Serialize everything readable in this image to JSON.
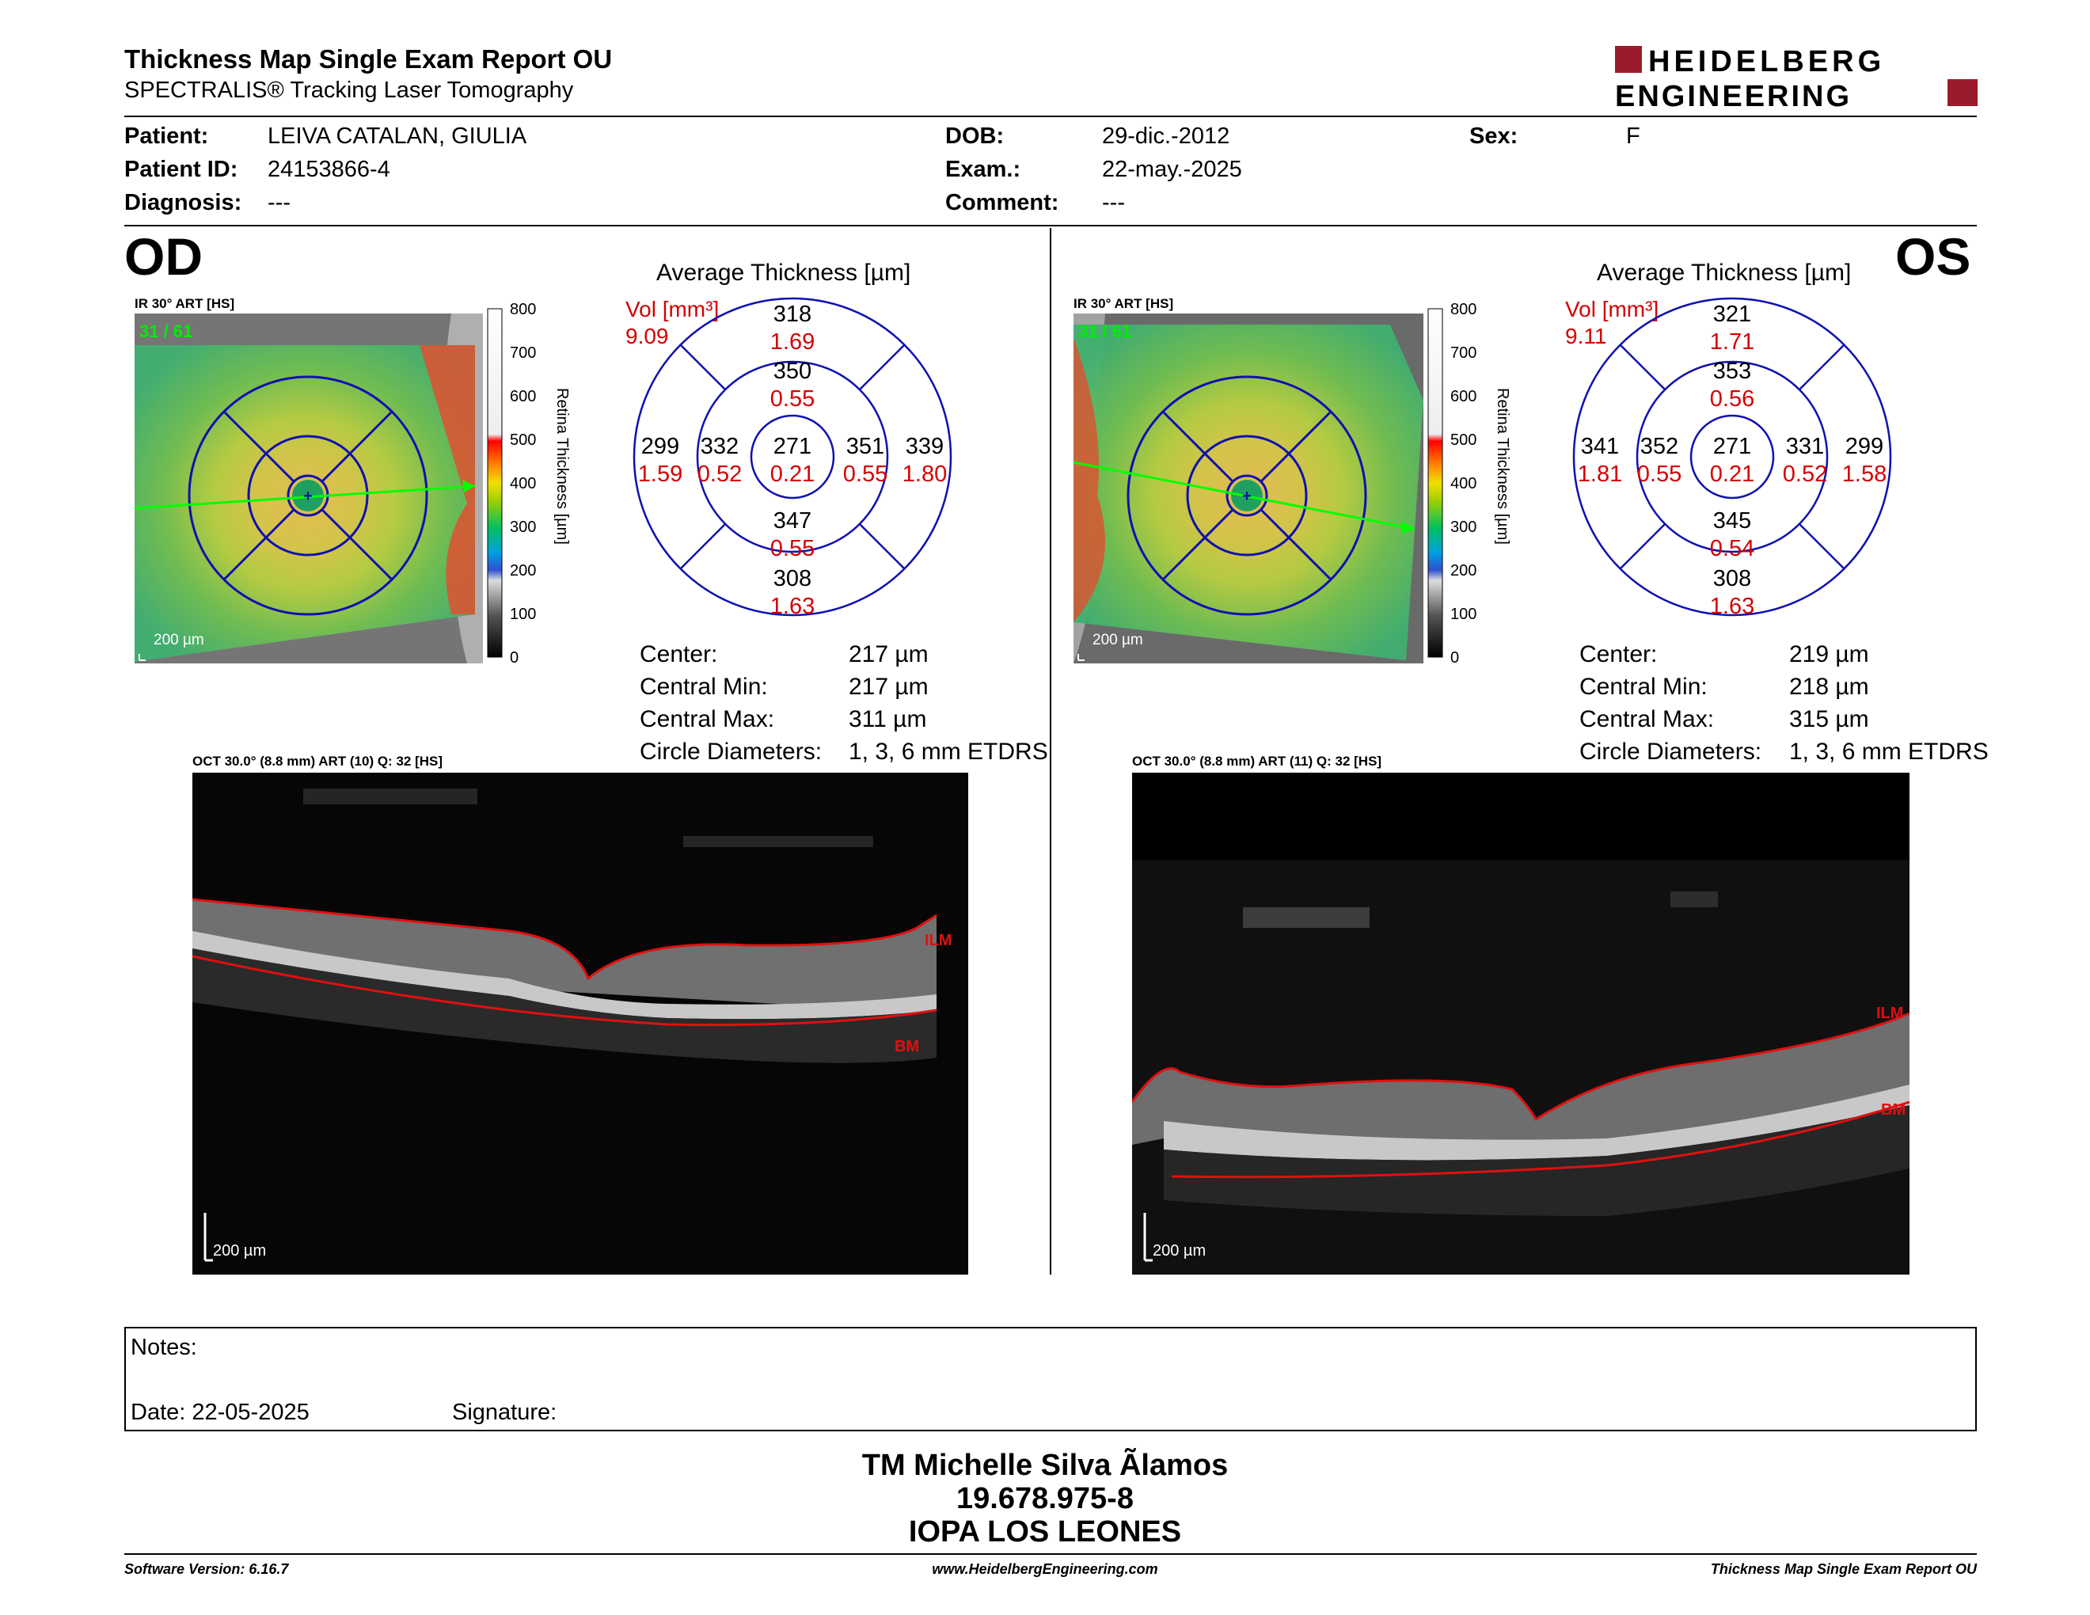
{
  "header": {
    "title": "Thickness Map Single Exam Report OU",
    "subtitle": "SPECTRALIS® Tracking Laser Tomography",
    "logo_line1": "HEIDELBERG",
    "logo_line2": "ENGINEERING",
    "logo_color": "#9a1b2b"
  },
  "patient": {
    "patient_label": "Patient:",
    "patient_value": "LEIVA CATALAN, GIULIA",
    "id_label": "Patient ID:",
    "id_value": "24153866-4",
    "diag_label": "Diagnosis:",
    "diag_value": "---",
    "dob_label": "DOB:",
    "dob_value": "29-dic.-2012",
    "exam_label": "Exam.:",
    "exam_value": "22-may.-2025",
    "comment_label": "Comment:",
    "comment_value": "---",
    "sex_label": "Sex:",
    "sex_value": "F"
  },
  "colorbar": {
    "ticks": [
      "800",
      "700",
      "600",
      "500",
      "400",
      "300",
      "200",
      "100",
      "0"
    ],
    "label": "Retina Thickness [µm]"
  },
  "od": {
    "eye": "OD",
    "image_label": "IR 30° ART [HS]",
    "frame": "31 / 61",
    "scale": "200 µm",
    "avg_title": "Average Thickness [µm]",
    "vol_label": "Vol [mm³]",
    "vol_total": "9.09",
    "grid": {
      "sup_out": [
        "318",
        "1.69"
      ],
      "sup_in": [
        "350",
        "0.55"
      ],
      "temp_out": [
        "299",
        "1.59"
      ],
      "temp_in": [
        "332",
        "0.52"
      ],
      "center": [
        "271",
        "0.21"
      ],
      "nas_in": [
        "351",
        "0.55"
      ],
      "nas_out": [
        "339",
        "1.80"
      ],
      "inf_in": [
        "347",
        "0.55"
      ],
      "inf_out": [
        "308",
        "1.63"
      ]
    },
    "stats": {
      "center_label": "Center:",
      "center_value": "217 µm",
      "min_label": "Central Min:",
      "min_value": "217 µm",
      "max_label": "Central Max:",
      "max_value": "311 µm",
      "diam_label": "Circle Diameters:",
      "diam_value": "1, 3, 6 mm ETDRS"
    },
    "oct_label": "OCT 30.0° (8.8 mm) ART (10) Q: 32 [HS]",
    "oct_scale": "200 µm",
    "ilm": "ILM",
    "bm": "BM"
  },
  "os": {
    "eye": "OS",
    "image_label": "IR 30° ART [HS]",
    "frame": "31 / 61",
    "scale": "200 µm",
    "avg_title": "Average Thickness [µm]",
    "vol_label": "Vol [mm³]",
    "vol_total": "9.11",
    "grid": {
      "sup_out": [
        "321",
        "1.71"
      ],
      "sup_in": [
        "353",
        "0.56"
      ],
      "temp_out": [
        "341",
        "1.81"
      ],
      "temp_in": [
        "352",
        "0.55"
      ],
      "center": [
        "271",
        "0.21"
      ],
      "nas_in": [
        "331",
        "0.52"
      ],
      "nas_out": [
        "299",
        "1.58"
      ],
      "inf_in": [
        "345",
        "0.54"
      ],
      "inf_out": [
        "308",
        "1.63"
      ]
    },
    "stats": {
      "center_label": "Center:",
      "center_value": "219 µm",
      "min_label": "Central Min:",
      "min_value": "218 µm",
      "max_label": "Central Max:",
      "max_value": "315 µm",
      "diam_label": "Circle Diameters:",
      "diam_value": "1, 3, 6 mm ETDRS"
    },
    "oct_label": "OCT 30.0° (8.8 mm) ART (11) Q: 32 [HS]",
    "oct_scale": "200 µm",
    "ilm": "ILM",
    "bm": "BM"
  },
  "notes": {
    "notes_label": "Notes:",
    "date_label": "Date: 22-05-2025",
    "signature_label": "Signature:"
  },
  "signature_block": {
    "line1": "TM Michelle Silva Ãlamos",
    "line2": "19.678.975-8",
    "line3": "IOPA LOS LEONES"
  },
  "footer": {
    "left": "Software Version: 6.16.7",
    "center": "www.HeidelbergEngineering.com",
    "right": "Thickness Map Single Exam Report OU"
  }
}
